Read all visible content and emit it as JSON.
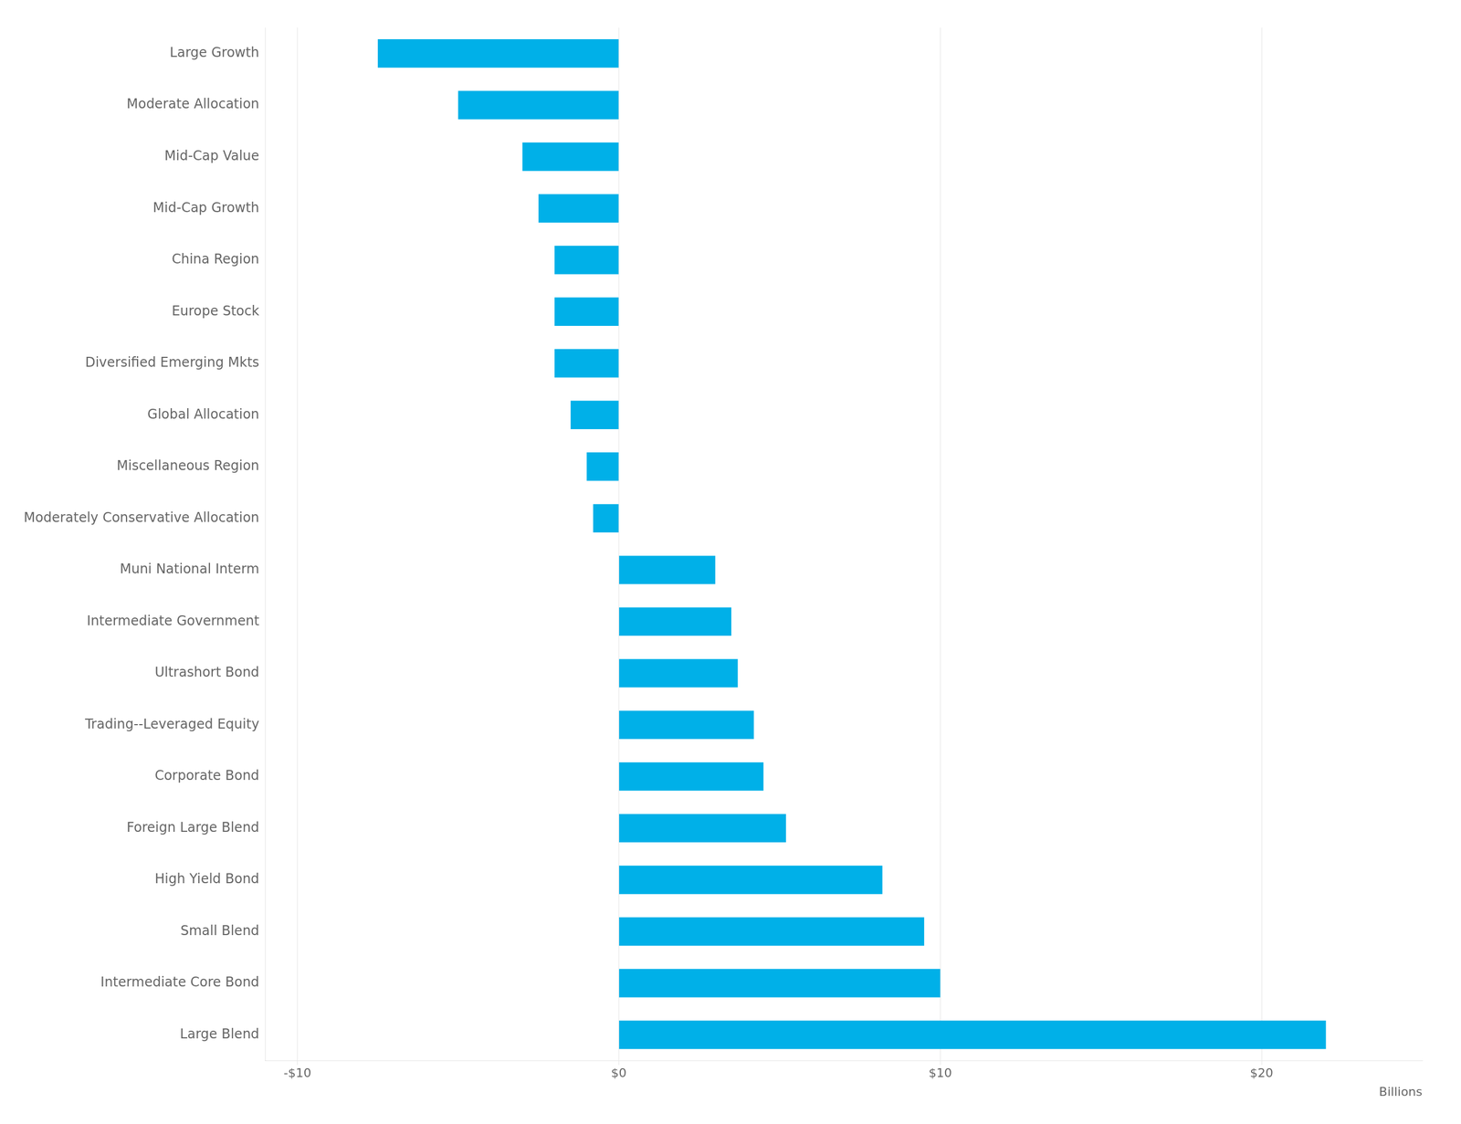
{
  "chart_data": {
    "type": "bar",
    "orientation": "horizontal",
    "categories": [
      "Large Blend",
      "Intermediate Core Bond",
      "Small Blend",
      "High Yield Bond",
      "Foreign Large Blend",
      "Corporate Bond",
      "Trading--Leveraged Equity",
      "Ultrashort Bond",
      "Intermediate Government",
      "Muni National Interm",
      "Moderately Conservative Allocation",
      "Miscellaneous Region",
      "Global Allocation",
      "Diversified Emerging Mkts",
      "Europe Stock",
      "China Region",
      "Mid-Cap Growth",
      "Mid-Cap Value",
      "Moderate Allocation",
      "Large Growth"
    ],
    "values": [
      22.0,
      10.0,
      9.5,
      8.2,
      5.2,
      4.5,
      4.2,
      3.7,
      3.5,
      3.0,
      -0.8,
      -1.0,
      -1.5,
      -2.0,
      -2.0,
      -2.0,
      -2.5,
      -3.0,
      -5.0,
      -7.5
    ],
    "color": "#00b0e8",
    "xlim": [
      -11,
      25
    ],
    "xticks": [
      {
        "value": -10,
        "label": "-$10"
      },
      {
        "value": 0,
        "label": "$0"
      },
      {
        "value": 10,
        "label": "$10"
      },
      {
        "value": 20,
        "label": "$20"
      }
    ],
    "xlabel": "Billions",
    "grid": true
  }
}
